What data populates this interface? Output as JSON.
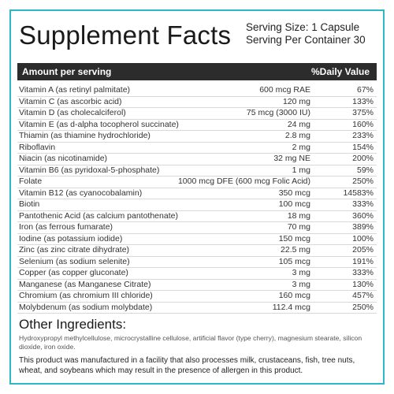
{
  "header": {
    "title": "Supplement Facts",
    "serving_size": "Serving Size: 1 Capsule",
    "servings_per_container": "Serving Per Container 30"
  },
  "table": {
    "col_amount": "Amount per serving",
    "col_dv": "%Daily Value",
    "rows": [
      {
        "name": "Vitamin A (as retinyl palmitate)",
        "amount": "600 mcg RAE",
        "dv": "67%"
      },
      {
        "name": "Vitamin C (as ascorbic acid)",
        "amount": "120 mg",
        "dv": "133%"
      },
      {
        "name": "Vitamin D (as cholecalciferol)",
        "amount": "75 mcg (3000 IU)",
        "dv": "375%"
      },
      {
        "name": "Vitamin E (as d-alpha tocopherol succinate)",
        "amount": "24 mg",
        "dv": "160%"
      },
      {
        "name": "Thiamin (as thiamine hydrochloride)",
        "amount": "2.8 mg",
        "dv": "233%"
      },
      {
        "name": "Riboflavin",
        "amount": "2 mg",
        "dv": "154%"
      },
      {
        "name": "Niacin (as nicotinamide)",
        "amount": "32 mg NE",
        "dv": "200%"
      },
      {
        "name": "Vitamin B6 (as pyridoxal-5-phosphate)",
        "amount": "1 mg",
        "dv": "59%"
      },
      {
        "name": "Folate",
        "amount": "1000 mcg DFE (600 mcg Folic Acid)",
        "dv": "250%"
      },
      {
        "name": "Vitamin B12 (as cyanocobalamin)",
        "amount": "350 mcg",
        "dv": "14583%"
      },
      {
        "name": "Biotin",
        "amount": "100 mcg",
        "dv": "333%"
      },
      {
        "name": "Pantothenic Acid (as calcium pantothenate)",
        "amount": "18 mg",
        "dv": "360%"
      },
      {
        "name": "Iron (as ferrous fumarate)",
        "amount": "70 mg",
        "dv": "389%"
      },
      {
        "name": "Iodine (as potassium iodide)",
        "amount": "150 mcg",
        "dv": "100%"
      },
      {
        "name": "Zinc (as zinc citrate dihydrate)",
        "amount": "22.5 mg",
        "dv": "205%"
      },
      {
        "name": "Selenium (as sodium selenite)",
        "amount": "105 mcg",
        "dv": "191%"
      },
      {
        "name": "Copper (as copper gluconate)",
        "amount": "3 mg",
        "dv": "333%"
      },
      {
        "name": "Manganese (as Manganese Citrate)",
        "amount": "3 mg",
        "dv": "130%"
      },
      {
        "name": "Chromium (as chromium III chloride)",
        "amount": "160 mcg",
        "dv": "457%"
      },
      {
        "name": "Molybdenum (as sodium molybdate)",
        "amount": "112.4 mcg",
        "dv": "250%"
      }
    ]
  },
  "other": {
    "heading": "Other Ingredients:",
    "ingredients": "Hydroxypropyl methylcellulose, microcrystalline cellulose, artificial flavor (type cherry), magnesium stearate, silicon dioxide, iron oxide.",
    "allergen": "This product was manufactured in a facility that also processes milk, crustaceans, fish, tree nuts, wheat, and soybeans which may result in the presence of allergen in this product."
  },
  "colors": {
    "border": "#2fb6c9",
    "header_bar": "#2c2c2c"
  }
}
